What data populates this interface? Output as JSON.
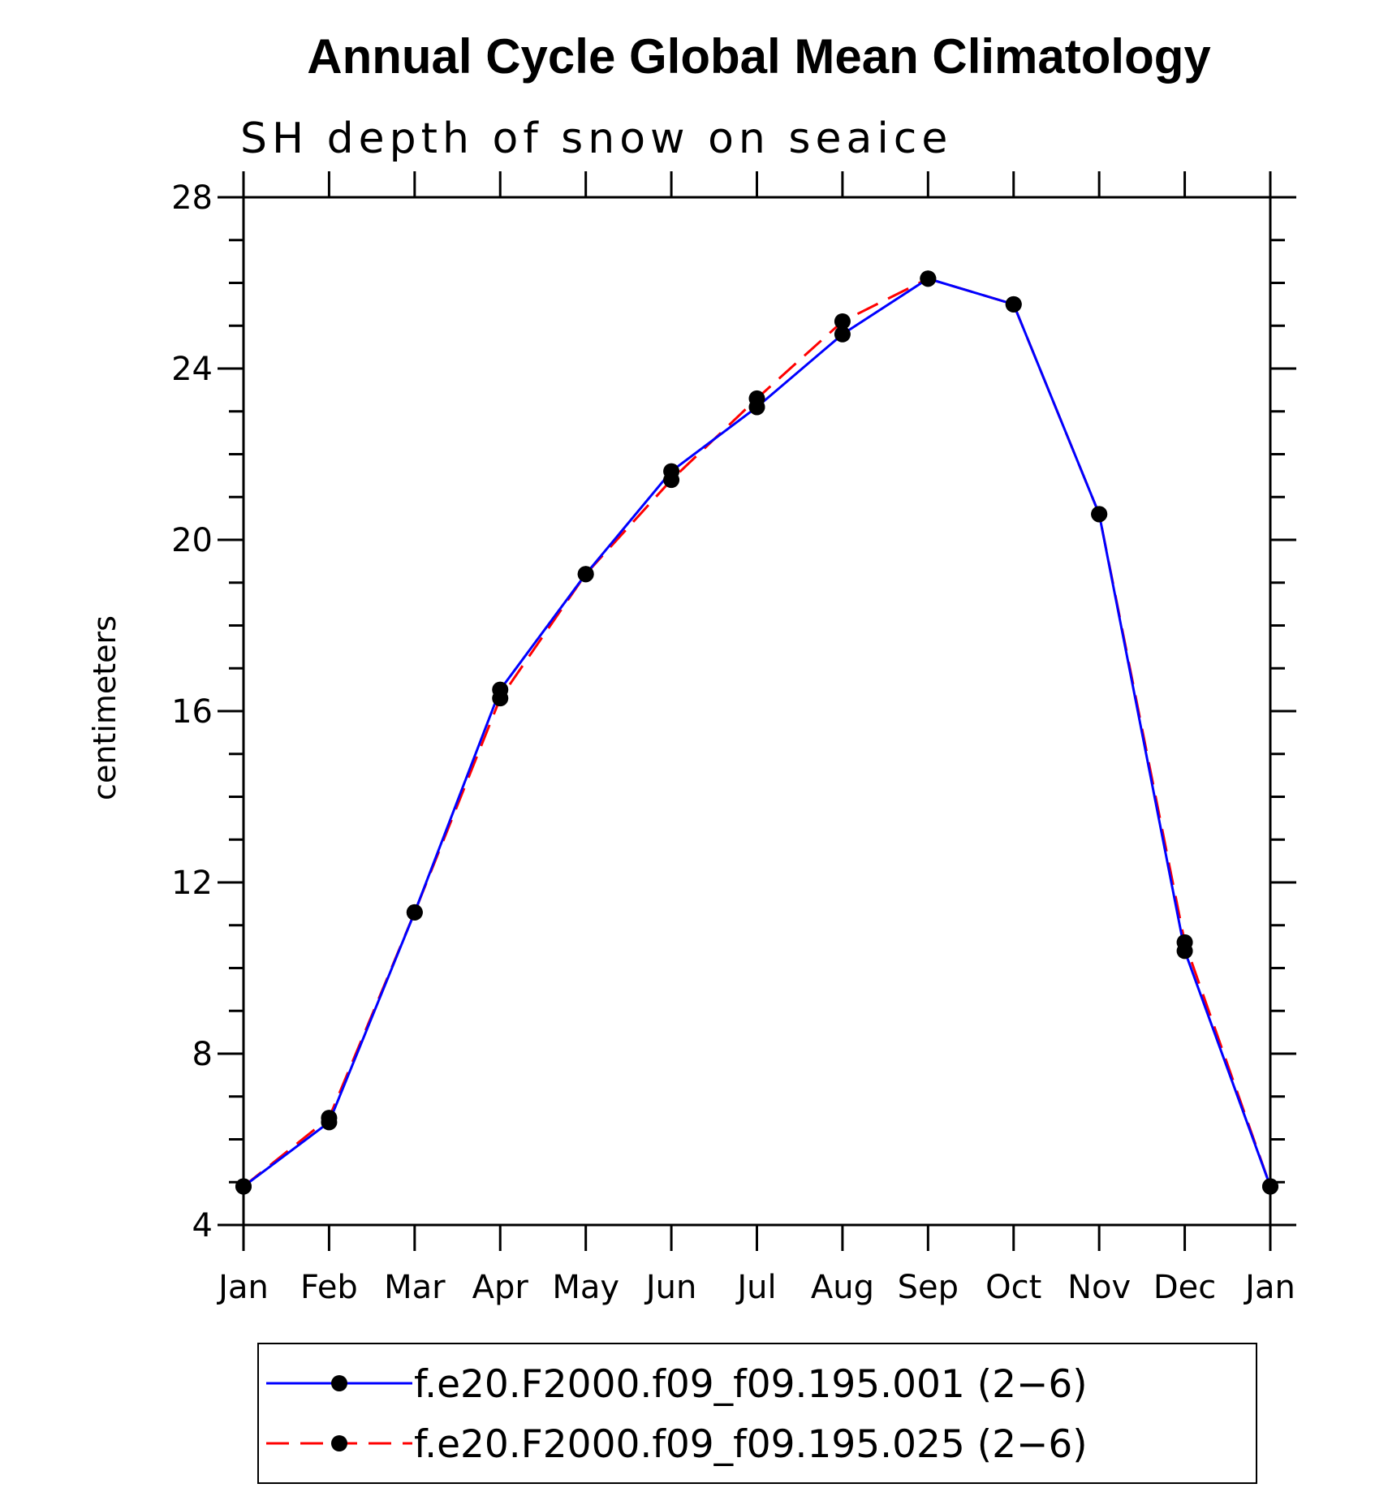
{
  "chart_data": {
    "type": "line",
    "title": "Annual Cycle Global Mean Climatology",
    "subtitle": "SH depth of snow on seaice",
    "xlabel": "",
    "ylabel": "centimeters",
    "categories": [
      "Jan",
      "Feb",
      "Mar",
      "Apr",
      "May",
      "Jun",
      "Jul",
      "Aug",
      "Sep",
      "Oct",
      "Nov",
      "Dec",
      "Jan"
    ],
    "ylim": [
      4,
      28
    ],
    "yticks": [
      "4",
      "8",
      "12",
      "16",
      "20",
      "24",
      "28"
    ],
    "series": [
      {
        "name": "f.e20.F2000.f09_f09.195.001 (2−6)",
        "color": "#0000ff",
        "style": "solid",
        "marker": "filled-circle",
        "values": [
          4.9,
          6.4,
          11.3,
          16.5,
          19.2,
          21.6,
          23.1,
          24.8,
          26.1,
          25.5,
          20.6,
          10.4,
          4.9
        ]
      },
      {
        "name": "f.e20.F2000.f09_f09.195.025 (2−6)",
        "color": "#ff0000",
        "style": "dashed",
        "marker": "filled-circle",
        "values": [
          4.9,
          6.5,
          11.3,
          16.3,
          19.2,
          21.4,
          23.3,
          25.1,
          26.1,
          25.5,
          20.6,
          10.6,
          4.9
        ]
      }
    ],
    "legend_position": "bottom",
    "grid": false
  }
}
